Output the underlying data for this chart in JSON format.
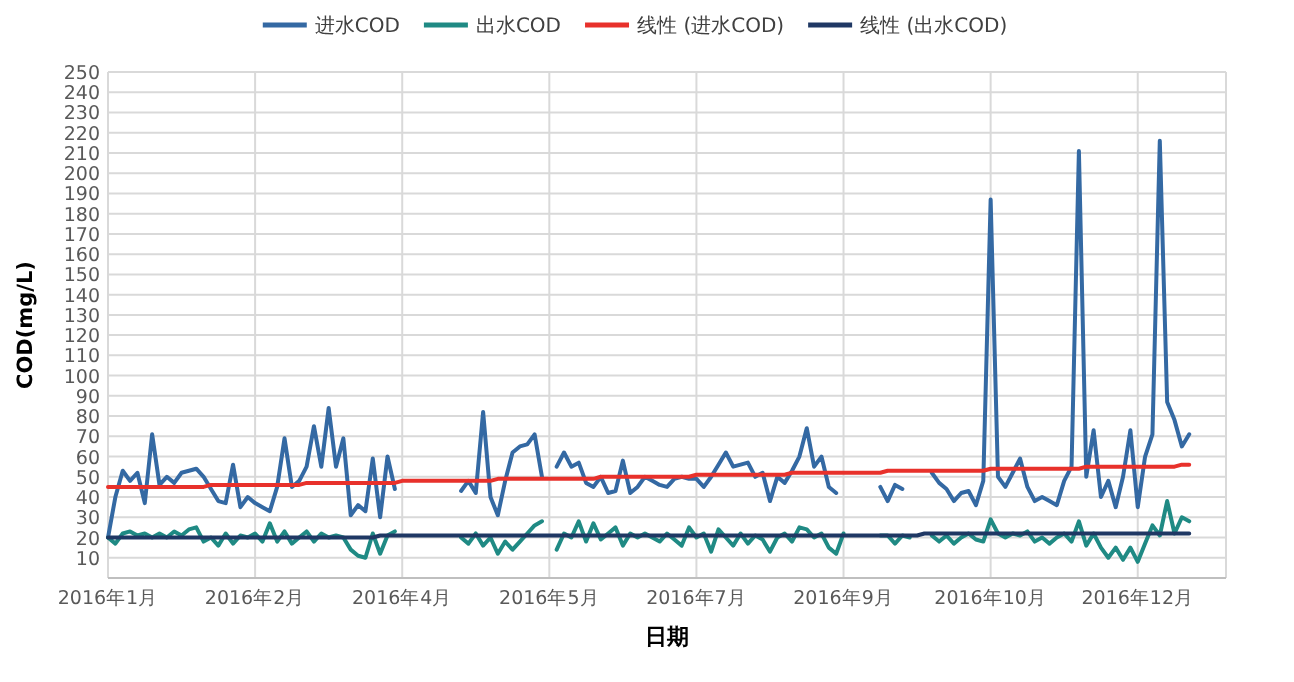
{
  "chart_data": {
    "type": "line",
    "xlabel": "日期",
    "ylabel": "COD(mg/L)",
    "legend": "top",
    "grid": true,
    "ylim": [
      0,
      250
    ],
    "yticks": [
      10,
      20,
      30,
      40,
      50,
      60,
      70,
      80,
      90,
      100,
      110,
      120,
      130,
      140,
      150,
      160,
      170,
      180,
      190,
      200,
      210,
      220,
      230,
      240,
      250
    ],
    "categories": [
      "2016年1月",
      null,
      null,
      null,
      null,
      null,
      null,
      null,
      null,
      null,
      null,
      null,
      null,
      null,
      null,
      null,
      null,
      null,
      null,
      null,
      "2016年2月",
      null,
      null,
      null,
      null,
      null,
      null,
      null,
      null,
      null,
      null,
      null,
      null,
      null,
      null,
      null,
      null,
      null,
      null,
      null,
      "2016年4月",
      null,
      null,
      null,
      null,
      null,
      null,
      null,
      null,
      null,
      null,
      null,
      null,
      null,
      null,
      null,
      null,
      null,
      null,
      null,
      "2016年5月",
      null,
      null,
      null,
      null,
      null,
      null,
      null,
      null,
      null,
      null,
      null,
      null,
      null,
      null,
      null,
      null,
      null,
      null,
      null,
      "2016年7月",
      null,
      null,
      null,
      null,
      null,
      null,
      null,
      null,
      null,
      null,
      null,
      null,
      null,
      null,
      null,
      null,
      null,
      null,
      null,
      "2016年9月",
      null,
      null,
      null,
      null,
      null,
      null,
      null,
      null,
      null,
      null,
      null,
      null,
      null,
      null,
      null,
      null,
      null,
      null,
      null,
      "2016年10月",
      null,
      null,
      null,
      null,
      null,
      null,
      null,
      null,
      null,
      null,
      null,
      null,
      null,
      null,
      null,
      null,
      null,
      null,
      null,
      "2016年12月",
      null,
      null,
      null,
      null,
      null,
      null,
      null,
      null,
      null,
      null,
      null
    ],
    "series": [
      {
        "name": "进水COD",
        "color": "#3469a3",
        "values": [
          20,
          40,
          53,
          48,
          52,
          37,
          71,
          46,
          50,
          47,
          52,
          53,
          54,
          50,
          44,
          38,
          37,
          56,
          35,
          40,
          37,
          35,
          33,
          45,
          69,
          45,
          48,
          55,
          75,
          55,
          84,
          55,
          69,
          31,
          36,
          33,
          59,
          30,
          60,
          44,
          null,
          null,
          null,
          null,
          null,
          null,
          null,
          null,
          43,
          48,
          42,
          82,
          40,
          31,
          48,
          62,
          65,
          66,
          71,
          50,
          null,
          55,
          62,
          55,
          57,
          47,
          45,
          50,
          42,
          43,
          58,
          42,
          45,
          50,
          48,
          46,
          45,
          49,
          50,
          49,
          49,
          45,
          50,
          56,
          62,
          55,
          56,
          57,
          50,
          52,
          38,
          50,
          47,
          53,
          60,
          74,
          55,
          60,
          45,
          42,
          null,
          null,
          null,
          null,
          null,
          45,
          38,
          46,
          44,
          null,
          null,
          null,
          52,
          47,
          44,
          38,
          42,
          43,
          36,
          48,
          187,
          50,
          45,
          52,
          59,
          45,
          38,
          40,
          38,
          36,
          48,
          55,
          211,
          50,
          73,
          40,
          48,
          35,
          50,
          73,
          35,
          60,
          71,
          216,
          87,
          78,
          65,
          71,
          null,
          null,
          null,
          null
        ]
      },
      {
        "name": "出水COD",
        "color": "#1f8a84",
        "values": [
          20,
          17,
          22,
          23,
          21,
          22,
          20,
          22,
          20,
          23,
          21,
          24,
          25,
          18,
          20,
          16,
          22,
          17,
          21,
          20,
          22,
          18,
          27,
          18,
          23,
          17,
          20,
          23,
          18,
          22,
          20,
          21,
          20,
          14,
          11,
          10,
          22,
          12,
          21,
          23,
          null,
          null,
          null,
          null,
          null,
          null,
          null,
          null,
          20,
          17,
          22,
          16,
          20,
          12,
          18,
          14,
          18,
          22,
          26,
          28,
          null,
          14,
          22,
          20,
          28,
          18,
          27,
          19,
          22,
          25,
          16,
          22,
          20,
          22,
          20,
          18,
          22,
          19,
          16,
          25,
          20,
          22,
          13,
          24,
          20,
          16,
          22,
          17,
          21,
          19,
          13,
          20,
          22,
          18,
          25,
          24,
          20,
          22,
          15,
          12,
          22,
          null,
          null,
          null,
          null,
          21,
          21,
          17,
          21,
          20,
          null,
          null,
          21,
          18,
          21,
          17,
          20,
          22,
          19,
          18,
          29,
          22,
          20,
          22,
          21,
          23,
          18,
          20,
          17,
          20,
          22,
          18,
          28,
          16,
          22,
          15,
          10,
          15,
          9,
          15,
          8,
          17,
          26,
          21,
          38,
          22,
          30,
          28,
          null,
          null,
          null,
          null
        ]
      },
      {
        "name": "线性 (进水COD)",
        "color": "#e8312b",
        "values": [
          45,
          45,
          45,
          45,
          45,
          45,
          45,
          45,
          45,
          45,
          45,
          45,
          45,
          45,
          46,
          46,
          46,
          46,
          46,
          46,
          46,
          46,
          46,
          46,
          46,
          46,
          46,
          47,
          47,
          47,
          47,
          47,
          47,
          47,
          47,
          47,
          47,
          47,
          47,
          47,
          48,
          48,
          48,
          48,
          48,
          48,
          48,
          48,
          48,
          48,
          48,
          48,
          48,
          49,
          49,
          49,
          49,
          49,
          49,
          49,
          49,
          49,
          49,
          49,
          49,
          49,
          49,
          50,
          50,
          50,
          50,
          50,
          50,
          50,
          50,
          50,
          50,
          50,
          50,
          50,
          51,
          51,
          51,
          51,
          51,
          51,
          51,
          51,
          51,
          51,
          51,
          51,
          51,
          52,
          52,
          52,
          52,
          52,
          52,
          52,
          52,
          52,
          52,
          52,
          52,
          52,
          53,
          53,
          53,
          53,
          53,
          53,
          53,
          53,
          53,
          53,
          53,
          53,
          53,
          53,
          54,
          54,
          54,
          54,
          54,
          54,
          54,
          54,
          54,
          54,
          54,
          54,
          54,
          55,
          55,
          55,
          55,
          55,
          55,
          55,
          55,
          55,
          55,
          55,
          55,
          55,
          56,
          56,
          null,
          null,
          null,
          null
        ]
      },
      {
        "name": "线性 (出水COD)",
        "color": "#1f3864",
        "values": [
          20,
          20,
          20,
          20,
          20,
          20,
          20,
          20,
          20,
          20,
          20,
          20,
          20,
          20,
          20,
          20,
          20,
          20,
          20,
          20,
          20,
          20,
          20,
          20,
          20,
          20,
          20,
          20,
          20,
          20,
          20,
          20,
          20,
          20,
          20,
          20,
          20,
          21,
          21,
          21,
          21,
          21,
          21,
          21,
          21,
          21,
          21,
          21,
          21,
          21,
          21,
          21,
          21,
          21,
          21,
          21,
          21,
          21,
          21,
          21,
          21,
          21,
          21,
          21,
          21,
          21,
          21,
          21,
          21,
          21,
          21,
          21,
          21,
          21,
          21,
          21,
          21,
          21,
          21,
          21,
          21,
          21,
          21,
          21,
          21,
          21,
          21,
          21,
          21,
          21,
          21,
          21,
          21,
          21,
          21,
          21,
          21,
          21,
          21,
          21,
          21,
          21,
          21,
          21,
          21,
          21,
          21,
          21,
          21,
          21,
          21,
          22,
          22,
          22,
          22,
          22,
          22,
          22,
          22,
          22,
          22,
          22,
          22,
          22,
          22,
          22,
          22,
          22,
          22,
          22,
          22,
          22,
          22,
          22,
          22,
          22,
          22,
          22,
          22,
          22,
          22,
          22,
          22,
          22,
          22,
          22,
          22,
          22,
          null,
          null,
          null,
          null
        ]
      }
    ]
  }
}
